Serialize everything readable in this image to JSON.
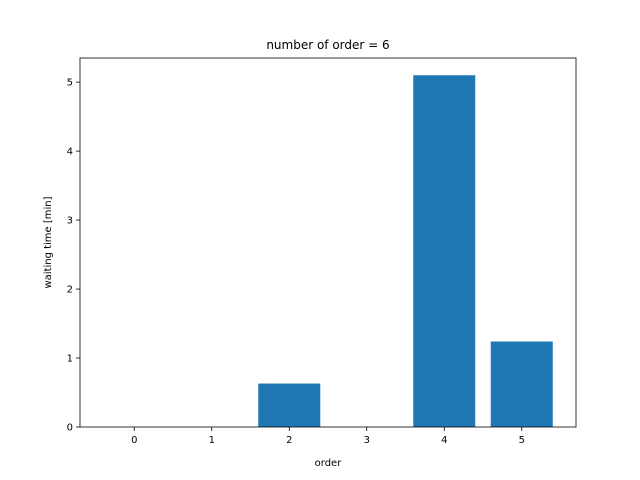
{
  "chart_data": {
    "type": "bar",
    "title": "number of order = 6",
    "xlabel": "order",
    "ylabel": "waiting time [min]",
    "categories": [
      "0",
      "1",
      "2",
      "3",
      "4",
      "5"
    ],
    "values": [
      0,
      0,
      0.63,
      0,
      5.1,
      1.24
    ],
    "yticks": [
      "0",
      "1",
      "2",
      "3",
      "4",
      "5"
    ],
    "ylim": [
      0,
      5.35
    ],
    "grid": false,
    "bar_color": "#1f77b4"
  }
}
